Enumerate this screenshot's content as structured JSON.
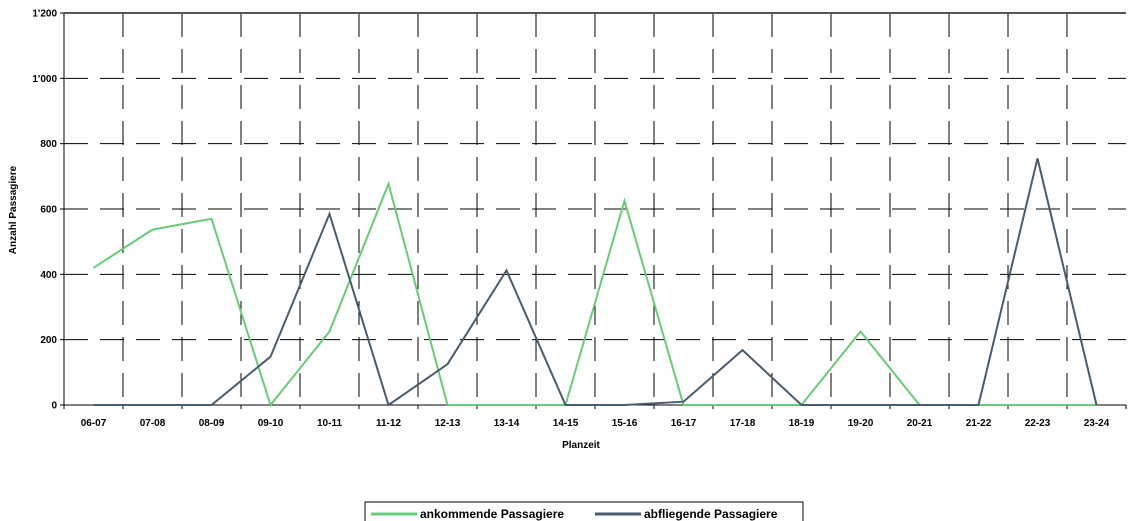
{
  "chart_data": {
    "type": "line",
    "xlabel": "Planzeit",
    "ylabel": "Anzahl Passagiere",
    "ylim": [
      0,
      1200
    ],
    "yticks": [
      0,
      200,
      400,
      600,
      800,
      1000,
      1200
    ],
    "ytick_labels": [
      "0",
      "200",
      "400",
      "600",
      "800",
      "1'000",
      "1'200"
    ],
    "categories": [
      "06-07",
      "07-08",
      "08-09",
      "09-10",
      "10-11",
      "11-12",
      "12-13",
      "13-14",
      "14-15",
      "15-16",
      "16-17",
      "17-18",
      "18-19",
      "19-20",
      "20-21",
      "21-22",
      "22-23",
      "23-24"
    ],
    "grid": true,
    "legend_position": "bottom-center",
    "series": [
      {
        "name": "ankommende Passagiere",
        "color": "#66cc77",
        "values": [
          420,
          537,
          570,
          0,
          225,
          677,
          0,
          0,
          0,
          625,
          0,
          0,
          0,
          225,
          0,
          0,
          0,
          0
        ]
      },
      {
        "name": "abfliegende Passagiere",
        "color": "#4a5d6e",
        "values": [
          0,
          0,
          0,
          148,
          585,
          0,
          125,
          412,
          0,
          0,
          10,
          168,
          0,
          0,
          0,
          0,
          755,
          0
        ]
      }
    ]
  }
}
